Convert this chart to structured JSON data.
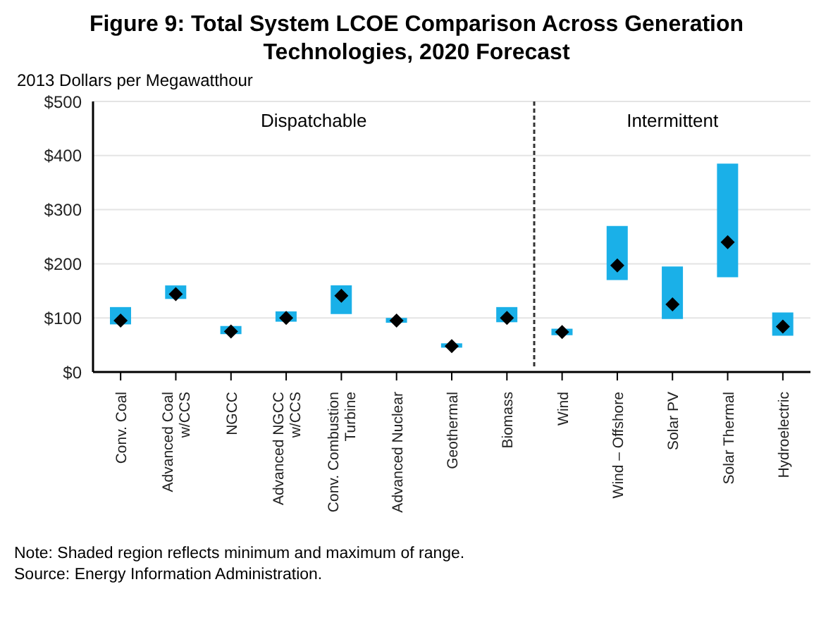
{
  "chart_data": {
    "type": "bar",
    "title": "Figure 9: Total System LCOE Comparison Across Generation Technologies, 2020 Forecast",
    "ylabel": "2013 Dollars per Megawatthour",
    "categories": [
      "Conv. Coal",
      "Advanced Coal w/CCS",
      "NGCC",
      "Advanced NGCC w/CCS",
      "Conv. Combustion Turbine",
      "Advanced Nuclear",
      "Geothermal",
      "Biomass",
      "Wind",
      "Wind – Offshore",
      "Solar PV",
      "Solar Thermal",
      "Hydroelectric"
    ],
    "series": [
      {
        "color": "#1ab0e8",
        "base": [
          88,
          135,
          70,
          93,
          107,
          91,
          45,
          92,
          68,
          170,
          98,
          175,
          67
        ],
        "values": [
          32,
          25,
          15,
          19,
          53,
          9,
          8,
          28,
          12,
          100,
          97,
          210,
          43
        ]
      },
      {
        "type": "scatter",
        "color": "#000000",
        "values": [
          95,
          144,
          75,
          100,
          141,
          95,
          48,
          100,
          74,
          197,
          125,
          240,
          84
        ]
      }
    ],
    "marker": "diamond",
    "ylim": [
      0,
      500
    ],
    "yticks": [
      {
        "value": 0,
        "label": "$0"
      },
      {
        "value": 100,
        "label": "$100"
      },
      {
        "value": 200,
        "label": "$200"
      },
      {
        "value": 300,
        "label": "$300"
      },
      {
        "value": 400,
        "label": "$400"
      },
      {
        "value": 500,
        "label": "$500"
      }
    ],
    "grid": "y",
    "annotations": [
      "Dispatchable",
      "Intermittent",
      "Note: Shaded region reflects minimum and maximum of range.",
      "Source: Energy Information Administration."
    ]
  }
}
